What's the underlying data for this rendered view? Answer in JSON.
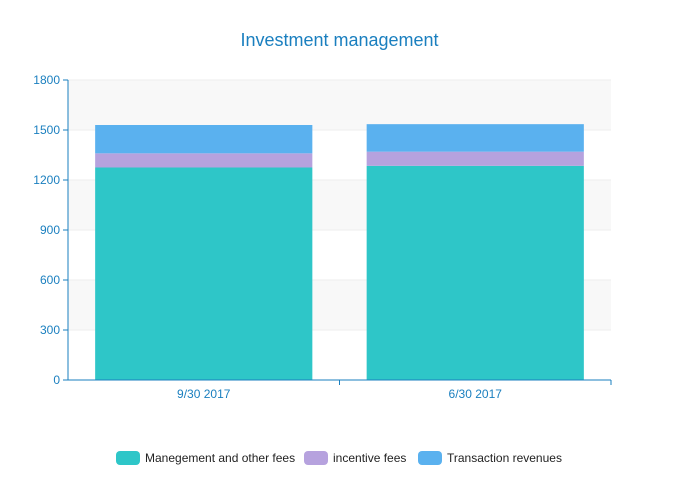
{
  "chart_data": {
    "type": "bar",
    "stacked": true,
    "title": "Investment management",
    "categories": [
      "9/30 2017",
      "6/30 2017"
    ],
    "series": [
      {
        "name": "Manegement and other fees",
        "values": [
          1275,
          1285
        ],
        "color": "#2ec6c8"
      },
      {
        "name": "incentive fees",
        "values": [
          85,
          85
        ],
        "color": "#b6a2de"
      },
      {
        "name": "Transaction revenues",
        "values": [
          170,
          165
        ],
        "color": "#5ab1ef"
      }
    ],
    "yticks": [
      0,
      300,
      600,
      900,
      1200,
      1500,
      1800
    ],
    "ylim": [
      0,
      1800
    ],
    "grid": true,
    "legend_position": "bottom"
  }
}
